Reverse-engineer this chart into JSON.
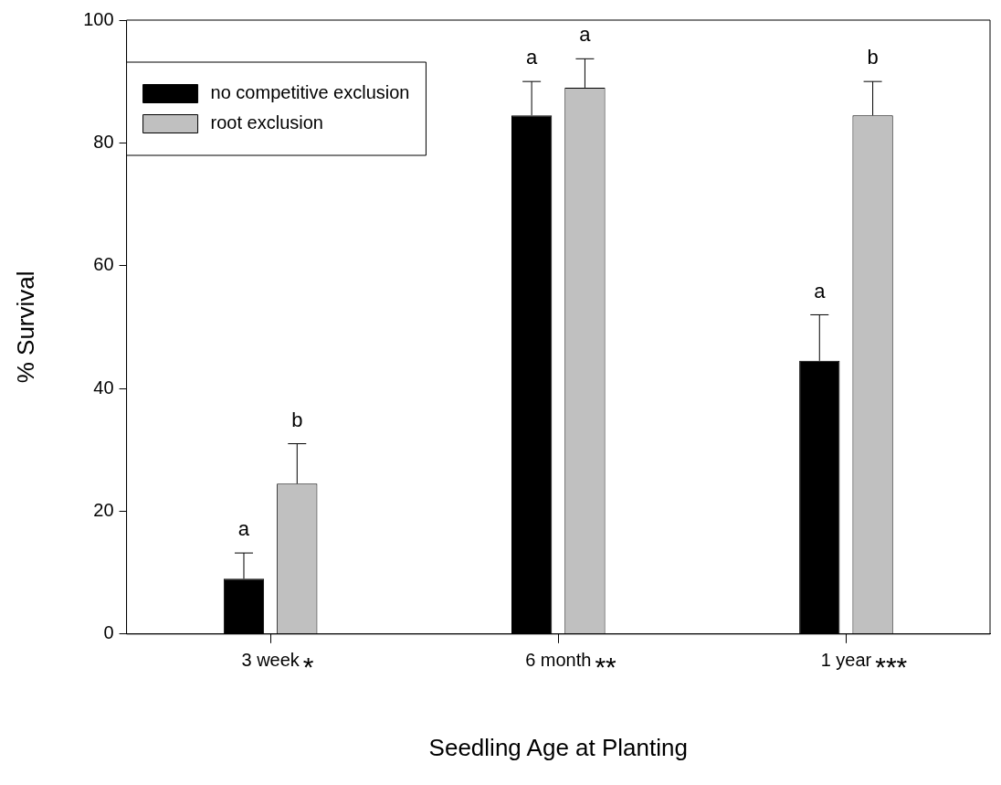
{
  "chart_data": {
    "type": "bar",
    "xlabel": "Seedling Age at Planting",
    "ylabel": "% Survival",
    "categories": [
      "3 week",
      "6 month",
      "1 year"
    ],
    "series": [
      {
        "name": "no competitive exclusion",
        "color": "#000000",
        "values": [
          9,
          84.5,
          44.5
        ],
        "errors": [
          [
            9,
            13.2
          ],
          [
            84.5,
            90
          ],
          [
            44.5,
            52
          ]
        ],
        "value_labels": [
          "a",
          "a",
          "a"
        ]
      },
      {
        "name": "root exclusion",
        "color": "#c0c0c0",
        "values": [
          24.5,
          89,
          84.5
        ],
        "errors": [
          [
            24.5,
            31
          ],
          [
            89,
            93.7
          ],
          [
            84.5,
            90
          ]
        ],
        "value_labels": [
          "b",
          "a",
          "b"
        ]
      }
    ],
    "annotations": [
      "*",
      "**",
      "***"
    ],
    "ylim": [
      0,
      100
    ],
    "yticks": [
      0,
      20,
      40,
      60,
      80,
      100
    ],
    "grid": false,
    "legend": "top left"
  }
}
